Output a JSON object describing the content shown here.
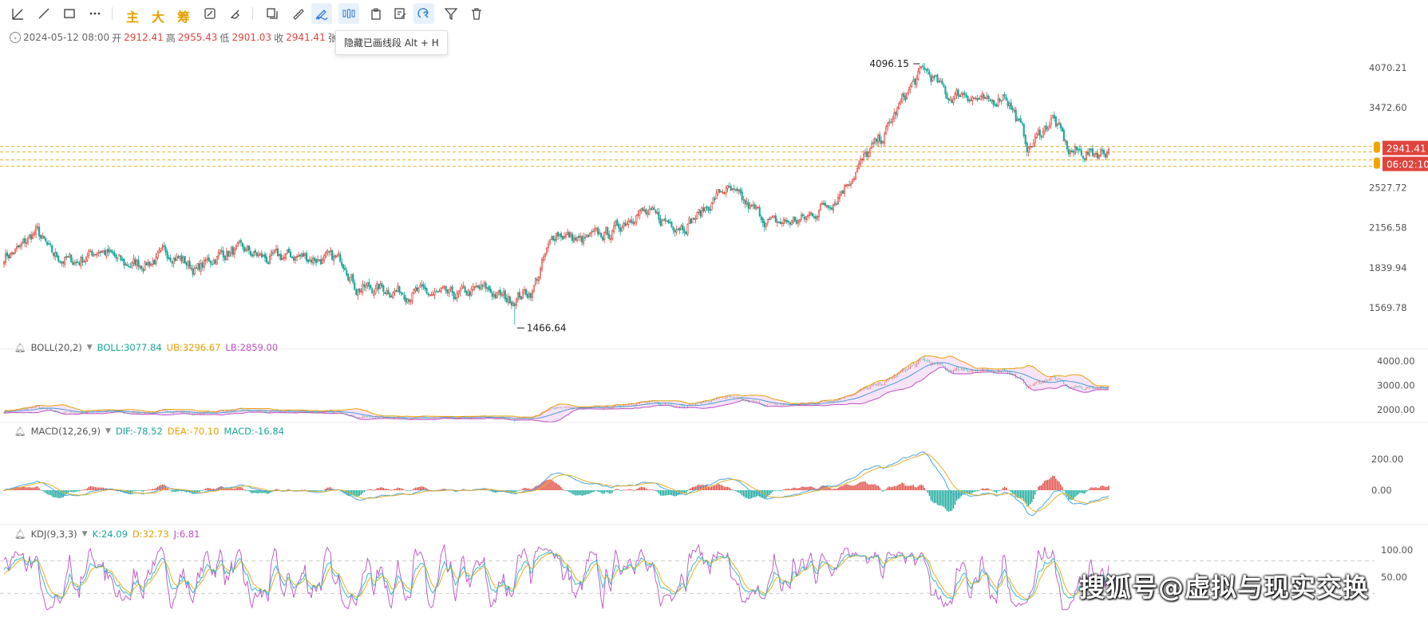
{
  "toolbar": {
    "main_label": "主",
    "big_label": "大",
    "chip_label": "筹",
    "tooltip": "隐藏已画线段 Alt + H",
    "icons": [
      "line-segment-icon",
      "ray-line-icon",
      "rectangle-icon",
      "more-icon",
      "snapshot-icon",
      "ruler-icon",
      "pen-draw-icon",
      "candle-pattern-icon",
      "clipboard-icon",
      "note-edit-icon",
      "magnet-icon",
      "filter-icon",
      "trash-icon"
    ]
  },
  "ohlc": {
    "date": "2024-05-12 08:00",
    "open_label": "开",
    "open": "2912.41",
    "high_label": "高",
    "high": "2955.43",
    "low_label": "低",
    "low": "2901.03",
    "close_label": "收",
    "close": "2941.41",
    "change_label": "张幅"
  },
  "indicators": {
    "boll": {
      "name": "BOLL(20,2)",
      "boll": "BOLL:3077.84",
      "ub": "UB:3296.67",
      "lb": "LB:2859.00"
    },
    "macd": {
      "name": "MACD(12,26,9)",
      "dif": "DIF:-78.52",
      "dea": "DEA:-70.10",
      "macd": "MACD:-16.84"
    },
    "kdj": {
      "name": "KDJ(9,3,3)",
      "k": "K:24.09",
      "d": "D:32.73",
      "j": "J:6.81"
    }
  },
  "colors": {
    "up": "#e0443c",
    "down": "#16a89a",
    "boll_mid": "#4e9bd6",
    "ub": "#e8a100",
    "lb": "#c04fc4",
    "dif": "#4aa6e0",
    "dea": "#e0b030",
    "k": "#3fb8c8",
    "d": "#e8b020",
    "j": "#c060c8"
  },
  "chart_data": [
    {
      "type": "candlestick",
      "series_name": "price",
      "y_ticks": [
        "4070.21",
        "3472.60",
        "2527.72",
        "2156.58",
        "1839.94",
        "1569.78"
      ],
      "markers": {
        "high": "4096.15",
        "low": "1466.64"
      },
      "current_price": "2941.41",
      "countdown": "06:02:10",
      "anchors": [
        [
          0,
          1930
        ],
        [
          10,
          1980
        ],
        [
          20,
          2130
        ],
        [
          30,
          1930
        ],
        [
          45,
          1880
        ],
        [
          60,
          1985
        ],
        [
          75,
          1860
        ],
        [
          90,
          1880
        ],
        [
          105,
          1955
        ],
        [
          120,
          1820
        ],
        [
          135,
          1950
        ],
        [
          150,
          1965
        ],
        [
          165,
          1900
        ],
        [
          180,
          1930
        ],
        [
          200,
          1905
        ],
        [
          213,
          1890
        ],
        [
          220,
          1700
        ],
        [
          240,
          1690
        ],
        [
          260,
          1660
        ],
        [
          280,
          1640
        ],
        [
          300,
          1690
        ],
        [
          315,
          1620
        ],
        [
          330,
          1680
        ],
        [
          345,
          2130
        ],
        [
          360,
          2040
        ],
        [
          380,
          2120
        ],
        [
          395,
          2310
        ],
        [
          410,
          2220
        ],
        [
          425,
          2190
        ],
        [
          435,
          2280
        ],
        [
          450,
          2520
        ],
        [
          465,
          2340
        ],
        [
          480,
          2190
        ],
        [
          500,
          2230
        ],
        [
          520,
          2440
        ],
        [
          535,
          2780
        ],
        [
          550,
          3120
        ],
        [
          565,
          3720
        ],
        [
          575,
          4050
        ],
        [
          590,
          3620
        ],
        [
          600,
          3700
        ],
        [
          615,
          3500
        ],
        [
          625,
          3700
        ],
        [
          640,
          2950
        ],
        [
          655,
          3340
        ],
        [
          665,
          2920
        ],
        [
          680,
          2900
        ],
        [
          690,
          2941
        ]
      ]
    },
    {
      "type": "line",
      "series_name": "BOLL",
      "y_ticks": [
        "4000.00",
        "3000.00",
        "2000.00"
      ]
    },
    {
      "type": "bar",
      "series_name": "MACD",
      "y_ticks": [
        "200.00",
        "0.00"
      ]
    },
    {
      "type": "line",
      "series_name": "KDJ",
      "y_ticks": [
        "100.00",
        "50.00"
      ]
    }
  ],
  "watermark": "搜狐号@虚拟与现实交换"
}
